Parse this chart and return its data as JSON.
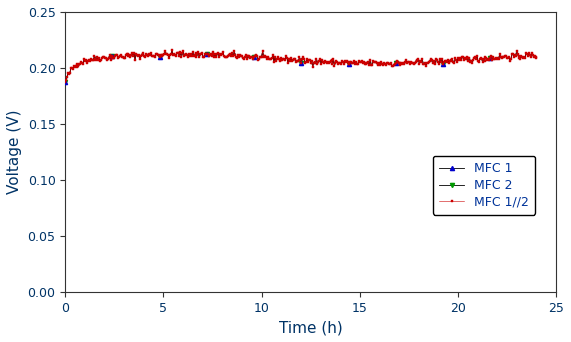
{
  "title": "",
  "xlabel": "Time (h)",
  "ylabel": "Voltage (V)",
  "xlim": [
    0,
    25
  ],
  "ylim": [
    0.0,
    0.25
  ],
  "yticks": [
    0.0,
    0.05,
    0.1,
    0.15,
    0.2,
    0.25
  ],
  "xticks": [
    0,
    5,
    10,
    15,
    20,
    25
  ],
  "legend_labels": [
    "MFC 1",
    "MFC 2",
    "MFC 1//2"
  ],
  "mfc1_color": "#0000cc",
  "mfc2_color": "#009900",
  "mfc12_color": "#cc0000",
  "line_color": "#000000",
  "background_color": "#ffffff",
  "figsize": [
    5.71,
    3.42
  ],
  "dpi": 100,
  "seed": 42,
  "n_points": 500
}
